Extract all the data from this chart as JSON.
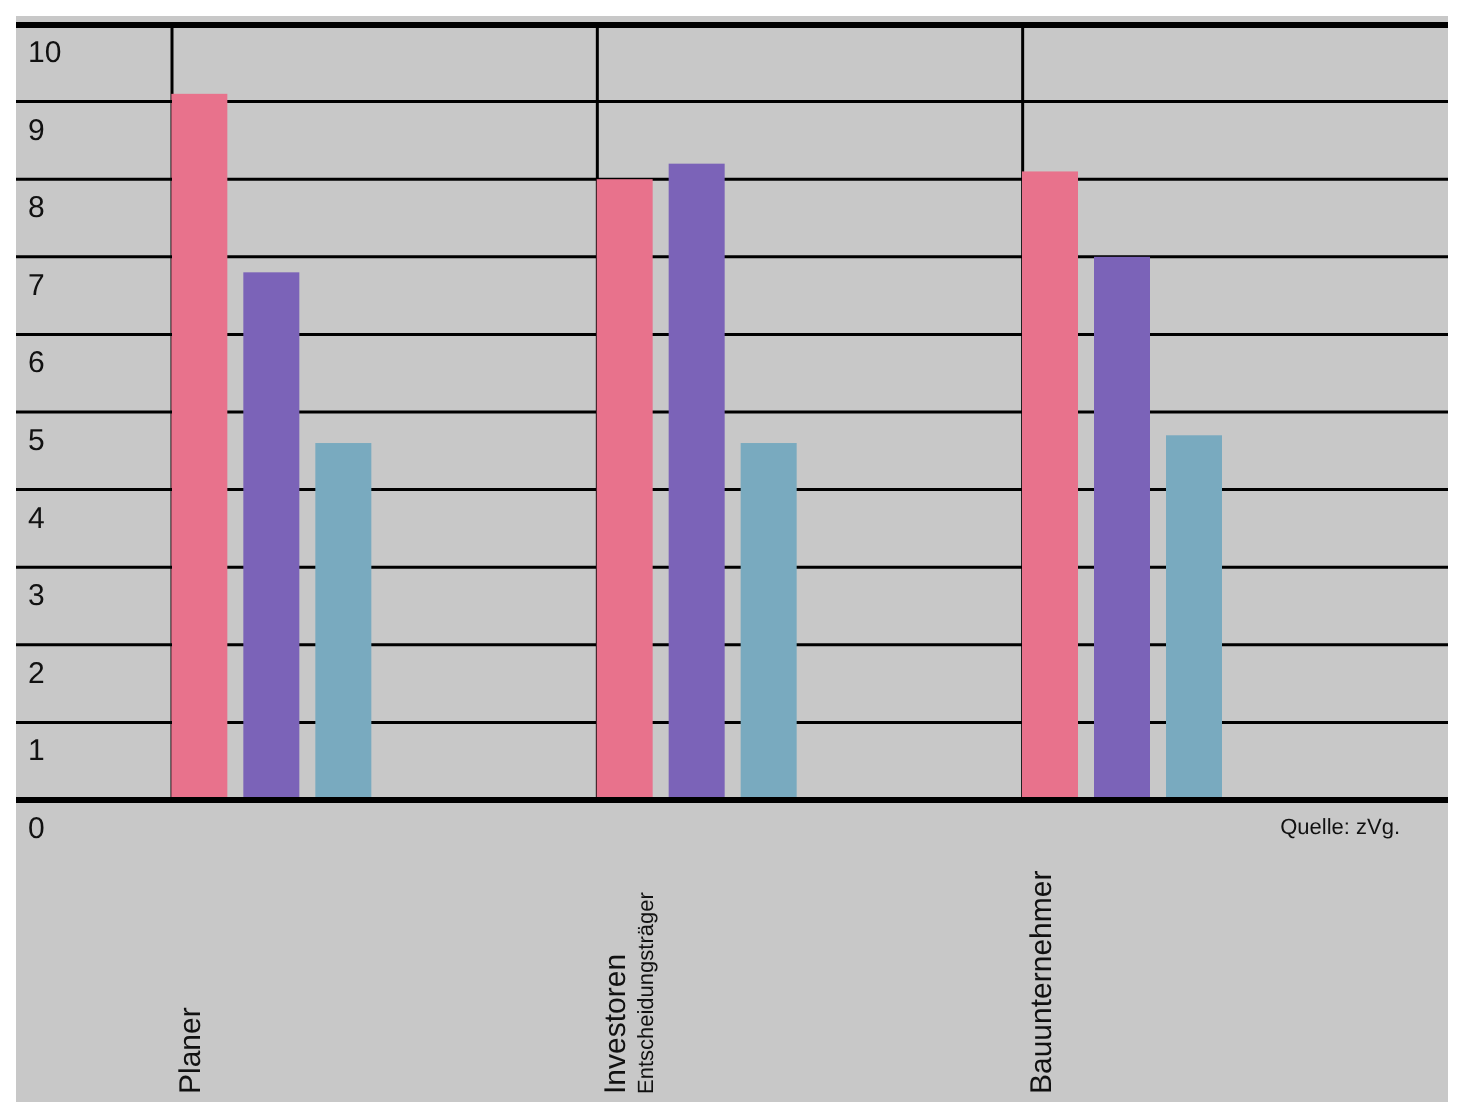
{
  "chart_data": {
    "type": "bar",
    "categories": [
      "Planer",
      "Investoren\nEntscheidungsträger",
      "Bauunternehmer"
    ],
    "series": [
      {
        "color": "#e8728c",
        "values": [
          9.1,
          8.0,
          8.1
        ]
      },
      {
        "color": "#7b63b8",
        "values": [
          6.8,
          8.2,
          7.0
        ]
      },
      {
        "color": "#79aabf",
        "values": [
          4.6,
          4.6,
          4.7
        ]
      }
    ],
    "ylim": [
      0,
      10
    ],
    "yticks": [
      0,
      1,
      2,
      3,
      4,
      5,
      6,
      7,
      8,
      9,
      10
    ],
    "grid": true,
    "annotations": [
      "Quelle: zVg."
    ]
  }
}
